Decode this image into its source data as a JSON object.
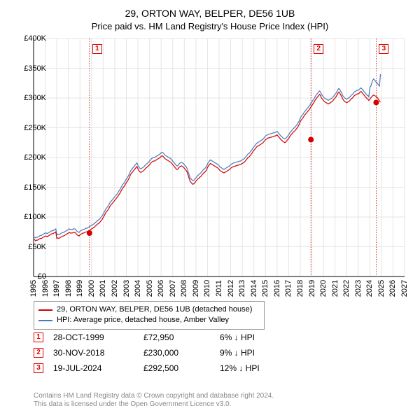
{
  "title": "29, ORTON WAY, BELPER, DE56 1UB",
  "subtitle": "Price paid vs. HM Land Registry's House Price Index (HPI)",
  "chart": {
    "type": "line",
    "background_color": "#ffffff",
    "grid_color": "#e4e4e4",
    "axis_color": "#000000",
    "x_start_year": 1995,
    "x_end_year": 2027,
    "y_min": 0,
    "y_max": 400,
    "y_step": 50,
    "y_prefix": "£",
    "y_suffix": "K",
    "series_price_paid": {
      "label": "29, ORTON WAY, BELPER, DE56 1UB (detached house)",
      "color": "#d40000",
      "line_width": 1.2,
      "values": [
        62,
        62,
        60,
        61,
        61,
        62,
        63,
        64,
        64,
        65,
        66,
        67,
        68,
        68,
        67,
        68,
        69,
        70,
        71,
        72,
        72,
        73,
        74,
        75,
        64,
        65,
        64,
        65,
        66,
        67,
        68,
        68,
        69,
        70,
        71,
        72,
        73,
        74,
        73,
        73,
        73,
        74,
        74,
        74,
        72,
        70,
        69,
        68,
        70,
        71,
        72,
        73,
        73,
        74,
        75,
        75,
        76,
        77,
        78,
        79,
        80,
        81,
        82,
        83,
        85,
        86,
        88,
        89,
        90,
        92,
        94,
        96,
        99,
        102,
        105,
        108,
        110,
        112,
        115,
        118,
        120,
        122,
        124,
        126,
        128,
        130,
        132,
        134,
        137,
        139,
        142,
        145,
        148,
        150,
        152,
        155,
        158,
        160,
        163,
        166,
        170,
        173,
        175,
        177,
        179,
        181,
        183,
        185,
        181,
        178,
        176,
        175,
        176,
        177,
        178,
        180,
        182,
        183,
        185,
        186,
        188,
        190,
        192,
        193,
        194,
        194,
        195,
        196,
        197,
        198,
        199,
        200,
        202,
        203,
        202,
        200,
        198,
        197,
        196,
        195,
        194,
        193,
        192,
        190,
        188,
        186,
        184,
        182,
        180,
        180,
        182,
        184,
        185,
        186,
        185,
        184,
        182,
        180,
        178,
        175,
        170,
        165,
        160,
        158,
        156,
        155,
        156,
        158,
        160,
        162,
        164,
        165,
        167,
        168,
        170,
        172,
        174,
        175,
        177,
        179,
        183,
        186,
        188,
        190,
        189,
        188,
        187,
        186,
        185,
        184,
        183,
        182,
        180,
        178,
        177,
        176,
        175,
        174,
        175,
        176,
        177,
        178,
        179,
        180,
        182,
        183,
        184,
        185,
        185,
        186,
        186,
        187,
        187,
        188,
        188,
        189,
        190,
        191,
        192,
        194,
        196,
        198,
        200,
        201,
        203,
        205,
        207,
        210,
        212,
        214,
        216,
        218,
        219,
        220,
        221,
        222,
        223,
        224,
        226,
        228,
        230,
        231,
        232,
        233,
        233,
        234,
        234,
        235,
        235,
        236,
        236,
        237,
        238,
        236,
        234,
        232,
        230,
        229,
        227,
        226,
        225,
        226,
        228,
        230,
        232,
        235,
        237,
        239,
        241,
        243,
        244,
        246,
        248,
        250,
        253,
        256,
        260,
        263,
        265,
        267,
        270,
        272,
        274,
        276,
        278,
        280,
        282,
        285,
        287,
        290,
        292,
        295,
        298,
        300,
        302,
        304,
        306,
        304,
        300,
        298,
        296,
        294,
        293,
        292,
        291,
        290,
        291,
        292,
        293,
        294,
        296,
        298,
        300,
        302,
        305,
        308,
        310,
        308,
        305,
        302,
        298,
        296,
        294,
        293,
        292,
        293,
        294,
        295,
        297,
        299,
        300,
        302,
        304,
        305,
        306,
        307,
        307,
        308,
        310,
        311,
        309,
        307,
        305,
        303,
        301,
        299,
        298,
        296,
        298,
        300,
        302,
        304,
        305,
        304,
        303,
        302,
        300,
        298,
        295,
        293
      ]
    },
    "series_hpi": {
      "label": "HPI: Average price, detached house, Amber Valley",
      "color": "#4a7ab8",
      "line_width": 1.2,
      "values": [
        66,
        66,
        65,
        66,
        66,
        67,
        68,
        69,
        69,
        70,
        71,
        72,
        73,
        73,
        72,
        73,
        74,
        75,
        76,
        77,
        77,
        78,
        79,
        80,
        70,
        71,
        70,
        71,
        72,
        73,
        74,
        74,
        75,
        76,
        77,
        78,
        79,
        80,
        79,
        79,
        79,
        80,
        80,
        80,
        78,
        76,
        75,
        74,
        76,
        77,
        78,
        79,
        79,
        80,
        81,
        81,
        82,
        83,
        84,
        85,
        86,
        87,
        88,
        89,
        91,
        92,
        94,
        95,
        96,
        98,
        100,
        102,
        105,
        108,
        111,
        114,
        116,
        118,
        121,
        124,
        126,
        128,
        130,
        132,
        134,
        136,
        138,
        140,
        143,
        145,
        148,
        151,
        154,
        156,
        158,
        161,
        164,
        166,
        169,
        172,
        176,
        179,
        181,
        183,
        185,
        187,
        189,
        191,
        187,
        184,
        182,
        181,
        182,
        183,
        184,
        186,
        188,
        189,
        191,
        192,
        194,
        196,
        198,
        199,
        200,
        200,
        201,
        202,
        203,
        204,
        205,
        206,
        208,
        209,
        208,
        206,
        204,
        203,
        202,
        201,
        200,
        199,
        198,
        196,
        194,
        192,
        190,
        188,
        186,
        186,
        188,
        190,
        191,
        192,
        191,
        190,
        188,
        186,
        184,
        181,
        176,
        171,
        166,
        164,
        162,
        161,
        162,
        164,
        166,
        168,
        170,
        171,
        173,
        174,
        176,
        178,
        180,
        181,
        183,
        185,
        189,
        192,
        194,
        196,
        195,
        194,
        193,
        192,
        191,
        190,
        189,
        188,
        186,
        184,
        183,
        182,
        181,
        180,
        181,
        182,
        183,
        184,
        185,
        186,
        188,
        189,
        190,
        191,
        191,
        192,
        192,
        193,
        193,
        194,
        194,
        195,
        196,
        197,
        198,
        200,
        202,
        204,
        206,
        207,
        209,
        211,
        213,
        216,
        218,
        220,
        222,
        224,
        225,
        226,
        227,
        228,
        229,
        230,
        232,
        234,
        236,
        237,
        238,
        239,
        239,
        240,
        240,
        241,
        241,
        242,
        242,
        243,
        244,
        242,
        240,
        238,
        236,
        235,
        233,
        232,
        231,
        232,
        234,
        236,
        238,
        241,
        243,
        245,
        247,
        249,
        250,
        252,
        254,
        256,
        259,
        262,
        266,
        269,
        271,
        273,
        276,
        278,
        280,
        282,
        284,
        286,
        288,
        291,
        293,
        296,
        298,
        301,
        304,
        306,
        308,
        310,
        312,
        310,
        306,
        304,
        302,
        300,
        299,
        298,
        297,
        296,
        297,
        298,
        299,
        300,
        302,
        304,
        306,
        308,
        311,
        314,
        316,
        314,
        311,
        308,
        304,
        302,
        300,
        299,
        298,
        299,
        300,
        301,
        303,
        305,
        306,
        308,
        310,
        311,
        312,
        313,
        313,
        314,
        316,
        317,
        315,
        313,
        311,
        309,
        307,
        305,
        304,
        302,
        317,
        320,
        325,
        330,
        332,
        330,
        328,
        326,
        324,
        322,
        320,
        340
      ]
    },
    "vlines": [
      {
        "year": 1999.82,
        "marker": "1",
        "style": "dotted",
        "color": "#d40000"
      },
      {
        "year": 2018.92,
        "marker": "2",
        "style": "dotted",
        "color": "#d40000"
      },
      {
        "year": 2024.55,
        "marker": "3",
        "style": "dotted",
        "color": "#d40000"
      }
    ],
    "price_points": [
      {
        "year": 1999.82,
        "value": 72.95
      },
      {
        "year": 2018.92,
        "value": 230
      },
      {
        "year": 2024.55,
        "value": 292.5
      }
    ]
  },
  "legend_items": [
    {
      "color": "#d40000",
      "text": "29, ORTON WAY, BELPER, DE56 1UB (detached house)"
    },
    {
      "color": "#4a7ab8",
      "text": "HPI: Average price, detached house, Amber Valley"
    }
  ],
  "entries": [
    {
      "marker": "1",
      "date": "28-OCT-1999",
      "price": "£72,950",
      "hpi": "6% ↓ HPI"
    },
    {
      "marker": "2",
      "date": "30-NOV-2018",
      "price": "£230,000",
      "hpi": "9% ↓ HPI"
    },
    {
      "marker": "3",
      "date": "19-JUL-2024",
      "price": "£292,500",
      "hpi": "12% ↓ HPI"
    }
  ],
  "footer1": "Contains HM Land Registry data © Crown copyright and database right 2024.",
  "footer2": "This data is licensed under the Open Government Licence v3.0."
}
